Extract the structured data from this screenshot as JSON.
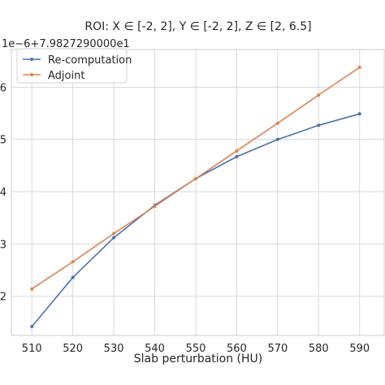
{
  "chart_data": {
    "type": "line",
    "title": "ROI: X ∈ [-2, 2], Y ∈ [-2, 2], Z ∈ [2, 6.5]",
    "xlabel": "Slab perturbation (HU)",
    "ylabel": "",
    "y_offset_text": "1e−6+7.9827290000e1",
    "x": [
      510,
      520,
      530,
      540,
      550,
      560,
      570,
      580,
      590
    ],
    "xlim": [
      505,
      596
    ],
    "ylim": [
      1.25,
      6.72
    ],
    "xticks": [
      510,
      520,
      530,
      540,
      550,
      560,
      570,
      580,
      590
    ],
    "yticks": [
      2,
      3,
      4,
      5,
      6
    ],
    "grid": true,
    "legend_position": "top-left",
    "series": [
      {
        "name": "Re-computation",
        "color": "#4c72b0",
        "values": [
          1.42,
          2.36,
          3.12,
          3.74,
          4.25,
          4.67,
          5.0,
          5.27,
          5.49
        ]
      },
      {
        "name": "Adjoint",
        "color": "#dd8452",
        "values": [
          2.14,
          2.66,
          3.2,
          3.72,
          4.25,
          4.78,
          5.31,
          5.85,
          6.38
        ]
      }
    ]
  }
}
